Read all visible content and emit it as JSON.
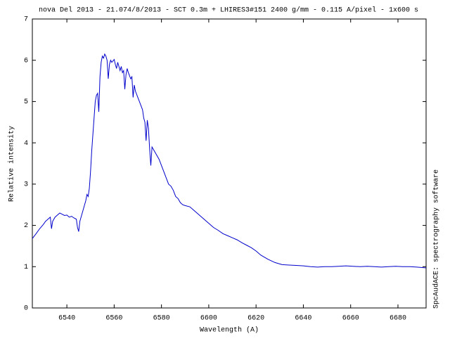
{
  "chart_data": {
    "type": "line",
    "title": "nova Del 2013 - 21.074/8/2013 - SCT 0.3m + LHIRES3#151 2400 g/mm - 0.115 A/pixel - 1x600 s",
    "x_label": "Wavelength (A)",
    "y_label": "Relative intensity",
    "side_label": "SpcAudACE: spectrography software",
    "x": [
      6525.4,
      6527,
      6528.5,
      6530,
      6531,
      6532,
      6533,
      6533.5,
      6534,
      6535,
      6536,
      6537,
      6538,
      6539,
      6540,
      6541,
      6542,
      6543,
      6544,
      6544.5,
      6545,
      6545.5,
      6546,
      6547,
      6548,
      6548.5,
      6549,
      6549.5,
      6550,
      6550.5,
      6551,
      6551.5,
      6552,
      6552.5,
      6553,
      6553.5,
      6554,
      6554.5,
      6555,
      6555.5,
      6556,
      6556.5,
      6557,
      6557.5,
      6558,
      6558.5,
      6559,
      6560,
      6560.5,
      6561,
      6561.5,
      6562,
      6562.5,
      6563,
      6563.5,
      6564,
      6564.5,
      6565,
      6565.5,
      6566,
      6567,
      6567.5,
      6568,
      6568.5,
      6569,
      6570,
      6571,
      6572,
      6572.5,
      6573,
      6573.5,
      6574,
      6574.5,
      6575,
      6575.5,
      6576,
      6577,
      6578,
      6579,
      6580,
      6581,
      6582,
      6583,
      6584,
      6585,
      6586,
      6587,
      6588,
      6589,
      6590,
      6592,
      6594,
      6596,
      6598,
      6600,
      6602,
      6604,
      6606,
      6608,
      6610,
      6612,
      6614,
      6616,
      6618,
      6620,
      6622,
      6625,
      6628,
      6631,
      6634,
      6637,
      6640,
      6643,
      6646,
      6649,
      6652,
      6655,
      6658,
      6661,
      6664,
      6667,
      6670,
      6673,
      6676,
      6679,
      6682,
      6685,
      6688,
      6691.9
    ],
    "series": [
      {
        "name": "spectrum",
        "color": "#0000cc",
        "values": [
          1.68,
          1.8,
          1.92,
          2.02,
          2.1,
          2.15,
          2.2,
          1.92,
          2.1,
          2.2,
          2.25,
          2.3,
          2.27,
          2.24,
          2.25,
          2.2,
          2.22,
          2.18,
          2.15,
          1.95,
          1.85,
          2.1,
          2.2,
          2.4,
          2.6,
          2.75,
          2.7,
          2.9,
          3.3,
          3.8,
          4.2,
          4.6,
          5.0,
          5.15,
          5.2,
          4.75,
          5.6,
          5.95,
          6.1,
          6.05,
          6.15,
          6.1,
          6.0,
          5.55,
          5.9,
          6.0,
          5.95,
          6.02,
          5.9,
          5.8,
          5.95,
          5.85,
          5.75,
          5.85,
          5.7,
          5.75,
          5.3,
          5.65,
          5.8,
          5.7,
          5.55,
          5.6,
          5.1,
          5.4,
          5.25,
          5.1,
          4.95,
          4.8,
          4.6,
          4.5,
          4.05,
          4.55,
          4.35,
          3.85,
          3.45,
          3.9,
          3.8,
          3.7,
          3.6,
          3.45,
          3.3,
          3.15,
          3.0,
          2.95,
          2.85,
          2.7,
          2.65,
          2.55,
          2.5,
          2.48,
          2.45,
          2.35,
          2.25,
          2.15,
          2.05,
          1.95,
          1.88,
          1.8,
          1.75,
          1.7,
          1.65,
          1.58,
          1.52,
          1.46,
          1.38,
          1.28,
          1.18,
          1.1,
          1.05,
          1.04,
          1.03,
          1.02,
          1.0,
          0.99,
          1.0,
          1.0,
          1.01,
          1.02,
          1.01,
          1.0,
          1.01,
          1.0,
          0.99,
          1.0,
          1.01,
          1.0,
          1.0,
          0.99,
          0.97
        ]
      }
    ],
    "xlim": [
      6525.4,
      6691.9
    ],
    "ylim": [
      0,
      7
    ],
    "xticks": [
      6540,
      6560,
      6580,
      6600,
      6620,
      6640,
      6660,
      6680
    ],
    "yticks": [
      0,
      1,
      2,
      3,
      4,
      5,
      6,
      7
    ]
  }
}
